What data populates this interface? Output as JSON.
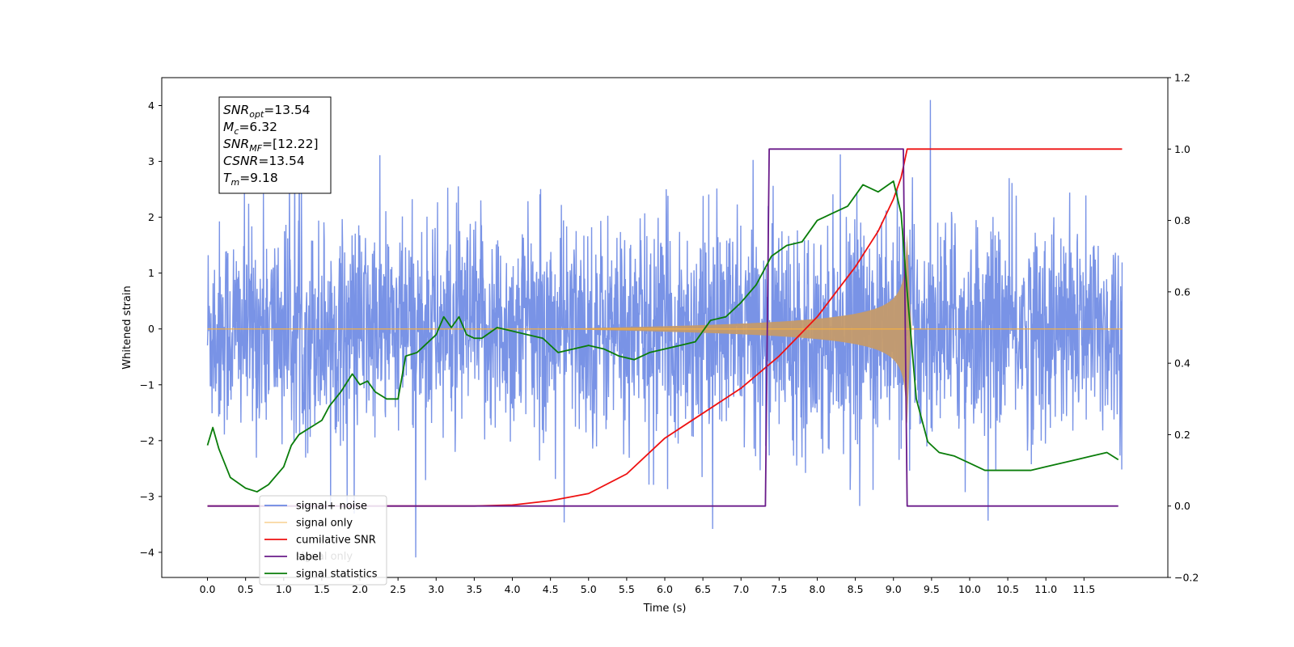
{
  "chart_data": {
    "type": "line",
    "title": "",
    "xlabel": "Time (s)",
    "ylabel": "Whitened strain",
    "y2label": "",
    "xlim": [
      -0.6,
      12.6
    ],
    "ylim": [
      -4.45,
      4.5
    ],
    "y2lim": [
      -0.2,
      1.2
    ],
    "xticks": [
      0.0,
      0.5,
      1.0,
      1.5,
      2.0,
      2.5,
      3.0,
      3.5,
      4.0,
      4.5,
      5.0,
      5.5,
      6.0,
      6.5,
      7.0,
      7.5,
      8.0,
      8.5,
      9.0,
      9.5,
      10.0,
      10.5,
      11.0,
      11.5
    ],
    "xtick_labels": [
      "0.0",
      "0.5",
      "1.0",
      "1.5",
      "2.0",
      "2.5",
      "3.0",
      "3.5",
      "4.0",
      "4.5",
      "5.0",
      "5.5",
      "6.0",
      "6.5",
      "7.0",
      "7.5",
      "8.0",
      "8.5",
      "9.0",
      "9.5",
      "10.0",
      "10.5",
      "11.0",
      "11.5"
    ],
    "yticks": [
      -4,
      -3,
      -2,
      -1,
      0,
      1,
      2,
      3,
      4
    ],
    "ytick_labels": [
      "−4",
      "−3",
      "−2",
      "−1",
      "0",
      "1",
      "2",
      "3",
      "4"
    ],
    "y2ticks": [
      -0.2,
      0.0,
      0.2,
      0.4,
      0.6,
      0.8,
      1.0,
      1.2
    ],
    "y2tick_labels": [
      "−0.2",
      "0.0",
      "0.2",
      "0.4",
      "0.6",
      "0.8",
      "1.0",
      "1.2"
    ],
    "grid": false,
    "legend_position": "bottom-left",
    "noise": {
      "t_start": 0.0,
      "t_end": 12.0,
      "typical_abs": 2.2,
      "peak_abs": 4.1
    },
    "chirp": {
      "t_start": 4.3,
      "t_merge": 9.18,
      "peak_amplitude": 1.7
    },
    "series": [
      {
        "name": "signal+ noise",
        "axis": "left",
        "color": "#6a87e3",
        "kind": "noise"
      },
      {
        "name": "signal only",
        "axis": "left",
        "color": "#f5b041",
        "kind": "chirp"
      },
      {
        "name": "cumilative SNR",
        "axis": "right",
        "color": "#ee1111",
        "x": [
          0.0,
          3.5,
          4.0,
          4.5,
          5.0,
          5.5,
          6.0,
          6.5,
          7.0,
          7.5,
          8.0,
          8.5,
          8.8,
          9.0,
          9.1,
          9.18,
          12.0
        ],
        "y": [
          0.0,
          0.0,
          0.003,
          0.015,
          0.035,
          0.09,
          0.19,
          0.26,
          0.33,
          0.42,
          0.53,
          0.67,
          0.77,
          0.86,
          0.92,
          1.0,
          1.0
        ]
      },
      {
        "name": "label",
        "axis": "right",
        "color": "#6a1b8a",
        "x": [
          0.0,
          7.32,
          7.37,
          9.13,
          9.18,
          11.95
        ],
        "y": [
          0.0,
          0.0,
          1.0,
          1.0,
          0.0,
          0.0
        ]
      },
      {
        "name": "signal statistics",
        "axis": "right",
        "color": "#0a7d0a",
        "x": [
          0.0,
          0.07,
          0.15,
          0.3,
          0.5,
          0.65,
          0.8,
          1.0,
          1.1,
          1.2,
          1.35,
          1.5,
          1.6,
          1.75,
          1.9,
          2.0,
          2.1,
          2.2,
          2.35,
          2.5,
          2.6,
          2.75,
          2.85,
          3.0,
          3.1,
          3.2,
          3.3,
          3.4,
          3.5,
          3.6,
          3.8,
          4.0,
          4.2,
          4.4,
          4.6,
          4.8,
          5.0,
          5.2,
          5.4,
          5.6,
          5.8,
          6.0,
          6.2,
          6.4,
          6.6,
          6.8,
          7.0,
          7.2,
          7.4,
          7.6,
          7.8,
          8.0,
          8.2,
          8.4,
          8.6,
          8.8,
          9.0,
          9.1,
          9.18,
          9.3,
          9.45,
          9.6,
          9.8,
          10.0,
          10.2,
          10.4,
          10.6,
          10.8,
          11.0,
          11.2,
          11.4,
          11.6,
          11.8,
          11.95
        ],
        "y": [
          0.17,
          0.22,
          0.16,
          0.08,
          0.05,
          0.04,
          0.06,
          0.11,
          0.17,
          0.2,
          0.22,
          0.24,
          0.28,
          0.32,
          0.37,
          0.34,
          0.35,
          0.32,
          0.3,
          0.3,
          0.42,
          0.43,
          0.45,
          0.48,
          0.53,
          0.5,
          0.53,
          0.48,
          0.47,
          0.47,
          0.5,
          0.49,
          0.48,
          0.47,
          0.43,
          0.44,
          0.45,
          0.44,
          0.42,
          0.41,
          0.43,
          0.44,
          0.45,
          0.46,
          0.52,
          0.53,
          0.57,
          0.62,
          0.7,
          0.73,
          0.74,
          0.8,
          0.82,
          0.84,
          0.9,
          0.88,
          0.91,
          0.82,
          0.6,
          0.3,
          0.18,
          0.15,
          0.14,
          0.12,
          0.1,
          0.1,
          0.1,
          0.1,
          0.11,
          0.12,
          0.13,
          0.14,
          0.15,
          0.13
        ]
      }
    ],
    "annotation": [
      {
        "base": "SNR",
        "sub": "opt",
        "value": "=13.54"
      },
      {
        "base": "M",
        "sub": "c",
        "value": "=6.32"
      },
      {
        "base": "SNR",
        "sub": "MF",
        "value": "=[12.22]"
      },
      {
        "base": "CSNR",
        "sub": "",
        "value": "=13.54"
      },
      {
        "base": "T",
        "sub": "m",
        "value": "=9.18"
      }
    ],
    "legend_ghost_text": "signal only"
  }
}
